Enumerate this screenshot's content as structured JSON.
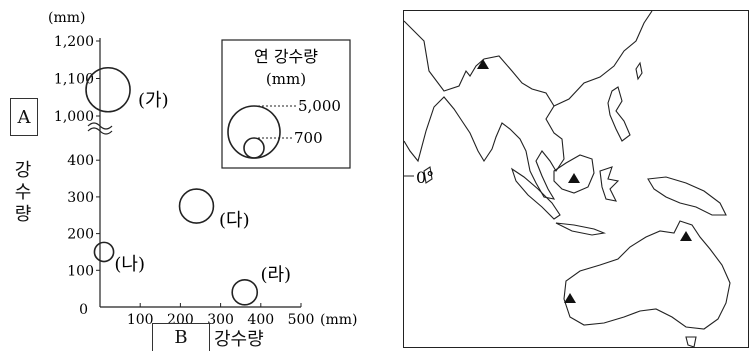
{
  "chart_data": {
    "type": "scatter",
    "ytick_unit": "(mm)",
    "xtick_unit": "(mm)",
    "yaxis_box_label": "A",
    "yaxis_text": "강수량",
    "xaxis_box_label": "B",
    "xaxis_text": "강수량",
    "yticks_upper": [
      "1,200",
      "1,100",
      "1,000"
    ],
    "yticks_lower": [
      "400",
      "300",
      "200",
      "100"
    ],
    "origin_label": "0",
    "xticks": [
      "100",
      "200",
      "300",
      "400",
      "500"
    ],
    "points": [
      {
        "label": "(가)",
        "x": 20,
        "y": 1070,
        "annual_precip_mm": 3700
      },
      {
        "label": "(나)",
        "x": 10,
        "y": 150,
        "annual_precip_mm": 700
      },
      {
        "label": "(다)",
        "x": 240,
        "y": 275,
        "annual_precip_mm": 2200
      },
      {
        "label": "(라)",
        "x": 360,
        "y": 40,
        "annual_precip_mm": 1200
      }
    ],
    "legend": {
      "title_line1": "연 강수량",
      "title_line2": "(mm)",
      "big_value": "5,000",
      "small_value": "700",
      "placement": "top-right"
    }
  },
  "map": {
    "equator_label": "0°",
    "markers": [
      "triangle",
      "triangle",
      "triangle",
      "triangle"
    ]
  }
}
